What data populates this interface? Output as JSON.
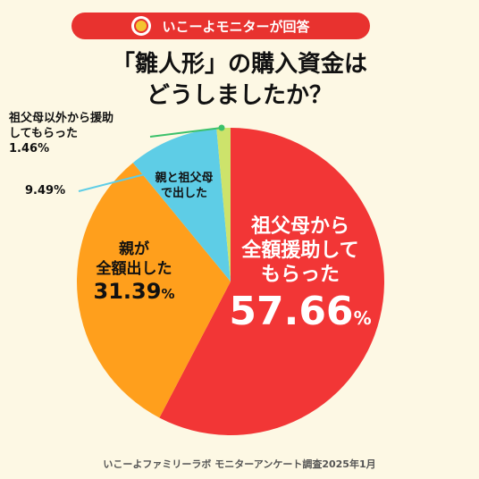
{
  "banner": {
    "text": "いこーよモニターが回答"
  },
  "title": {
    "line1": "「雛人形」の購入資金は",
    "line2": "どうしましたか？"
  },
  "chart_data": {
    "type": "pie",
    "slices": [
      {
        "label_lines": [
          "祖父母から",
          "全額援助して",
          "もらった"
        ],
        "value": 57.66,
        "color": "#f23636"
      },
      {
        "label_lines": [
          "親が",
          "全額出した"
        ],
        "value": 31.39,
        "color": "#ff9f1c"
      },
      {
        "label_lines": [
          "親と祖父母",
          "で出した"
        ],
        "value": 9.49,
        "color": "#5ecde6"
      },
      {
        "label_lines": [
          "祖父母以外から援助",
          "してもらった"
        ],
        "value": 1.46,
        "color": "#cde36b"
      }
    ],
    "value_labels": {
      "s0": {
        "num": "57.66",
        "unit": "%"
      },
      "s1": {
        "num": "31.39",
        "unit": "%"
      },
      "s2": "9.49%",
      "s3": "1.46%"
    }
  },
  "footer": "いこーよファミリーラボ モニターアンケート調査2025年1月"
}
